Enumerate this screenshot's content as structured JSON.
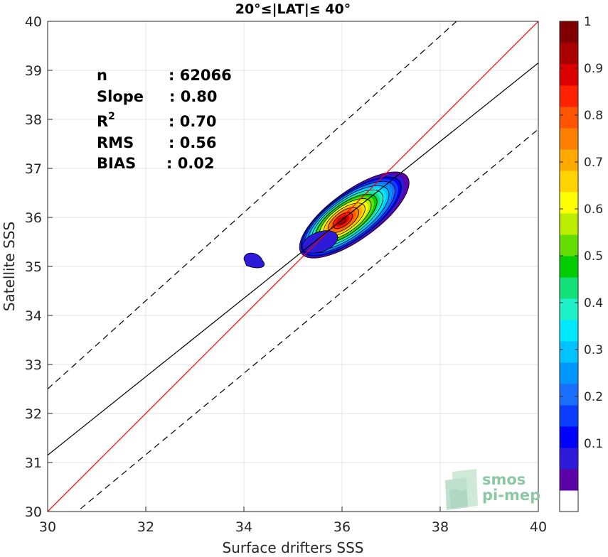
{
  "chart_data": {
    "type": "heatmap",
    "subtype": "density-contour-scatter",
    "title": "20°≤|LAT|≤ 40°",
    "xlabel": "Surface drifters SSS",
    "ylabel": "Satellite SSS",
    "xlim": [
      30,
      40
    ],
    "ylim": [
      30,
      40
    ],
    "xticks": [
      "30",
      "32",
      "34",
      "36",
      "38",
      "40"
    ],
    "yticks": [
      "30",
      "31",
      "32",
      "33",
      "34",
      "35",
      "36",
      "37",
      "38",
      "39",
      "40"
    ],
    "grid": true,
    "stats": [
      {
        "label": "n",
        "value": ": 62066"
      },
      {
        "label": "Slope",
        "value": ": 0.80"
      },
      {
        "label": "R",
        "sup": "2",
        "value": ": 0.70"
      },
      {
        "label": "RMS",
        "value": ": 0.56"
      },
      {
        "label": "BIAS",
        "value": ": 0.02"
      }
    ],
    "lines": [
      {
        "kind": "identity",
        "color": "#ff0000",
        "dash": "solid",
        "points": [
          [
            30,
            30
          ],
          [
            40,
            40
          ]
        ]
      },
      {
        "kind": "regression",
        "color": "#000000",
        "dash": "solid",
        "points": [
          [
            30,
            31.15
          ],
          [
            40,
            39.15
          ]
        ]
      },
      {
        "kind": "upper-bound",
        "color": "#000000",
        "dash": "dashed",
        "points": [
          [
            30,
            32.5
          ],
          [
            40,
            41.5
          ]
        ]
      },
      {
        "kind": "lower-bound",
        "color": "#000000",
        "dash": "dashed",
        "points": [
          [
            30,
            29.5
          ],
          [
            40,
            37.8
          ]
        ]
      }
    ],
    "density": {
      "main_peak": {
        "x": 36.0,
        "y": 35.93,
        "value": 1.0
      },
      "secondary_blob": {
        "x": 34.2,
        "y": 35.1,
        "value": 0.05
      }
    },
    "colorbar": {
      "range": [
        0,
        1
      ],
      "ticks": [
        "0.1",
        "0.2",
        "0.3",
        "0.4",
        "0.5",
        "0.6",
        "0.7",
        "0.8",
        "0.9",
        "1"
      ],
      "colors": [
        "#ffffff",
        "#5c00a8",
        "#2c1ad8",
        "#0000ff",
        "#0a3dff",
        "#1a6fff",
        "#0096ff",
        "#00c4ff",
        "#00e8ff",
        "#1ef0c8",
        "#14e07a",
        "#00cc00",
        "#66dd00",
        "#bbee00",
        "#ffff00",
        "#ffd400",
        "#ffaa00",
        "#ff7f00",
        "#ff5500",
        "#ff2200",
        "#dd0000",
        "#aa0000",
        "#800000"
      ]
    }
  },
  "logo": {
    "line1": "smos",
    "line2": "pi-mep"
  }
}
